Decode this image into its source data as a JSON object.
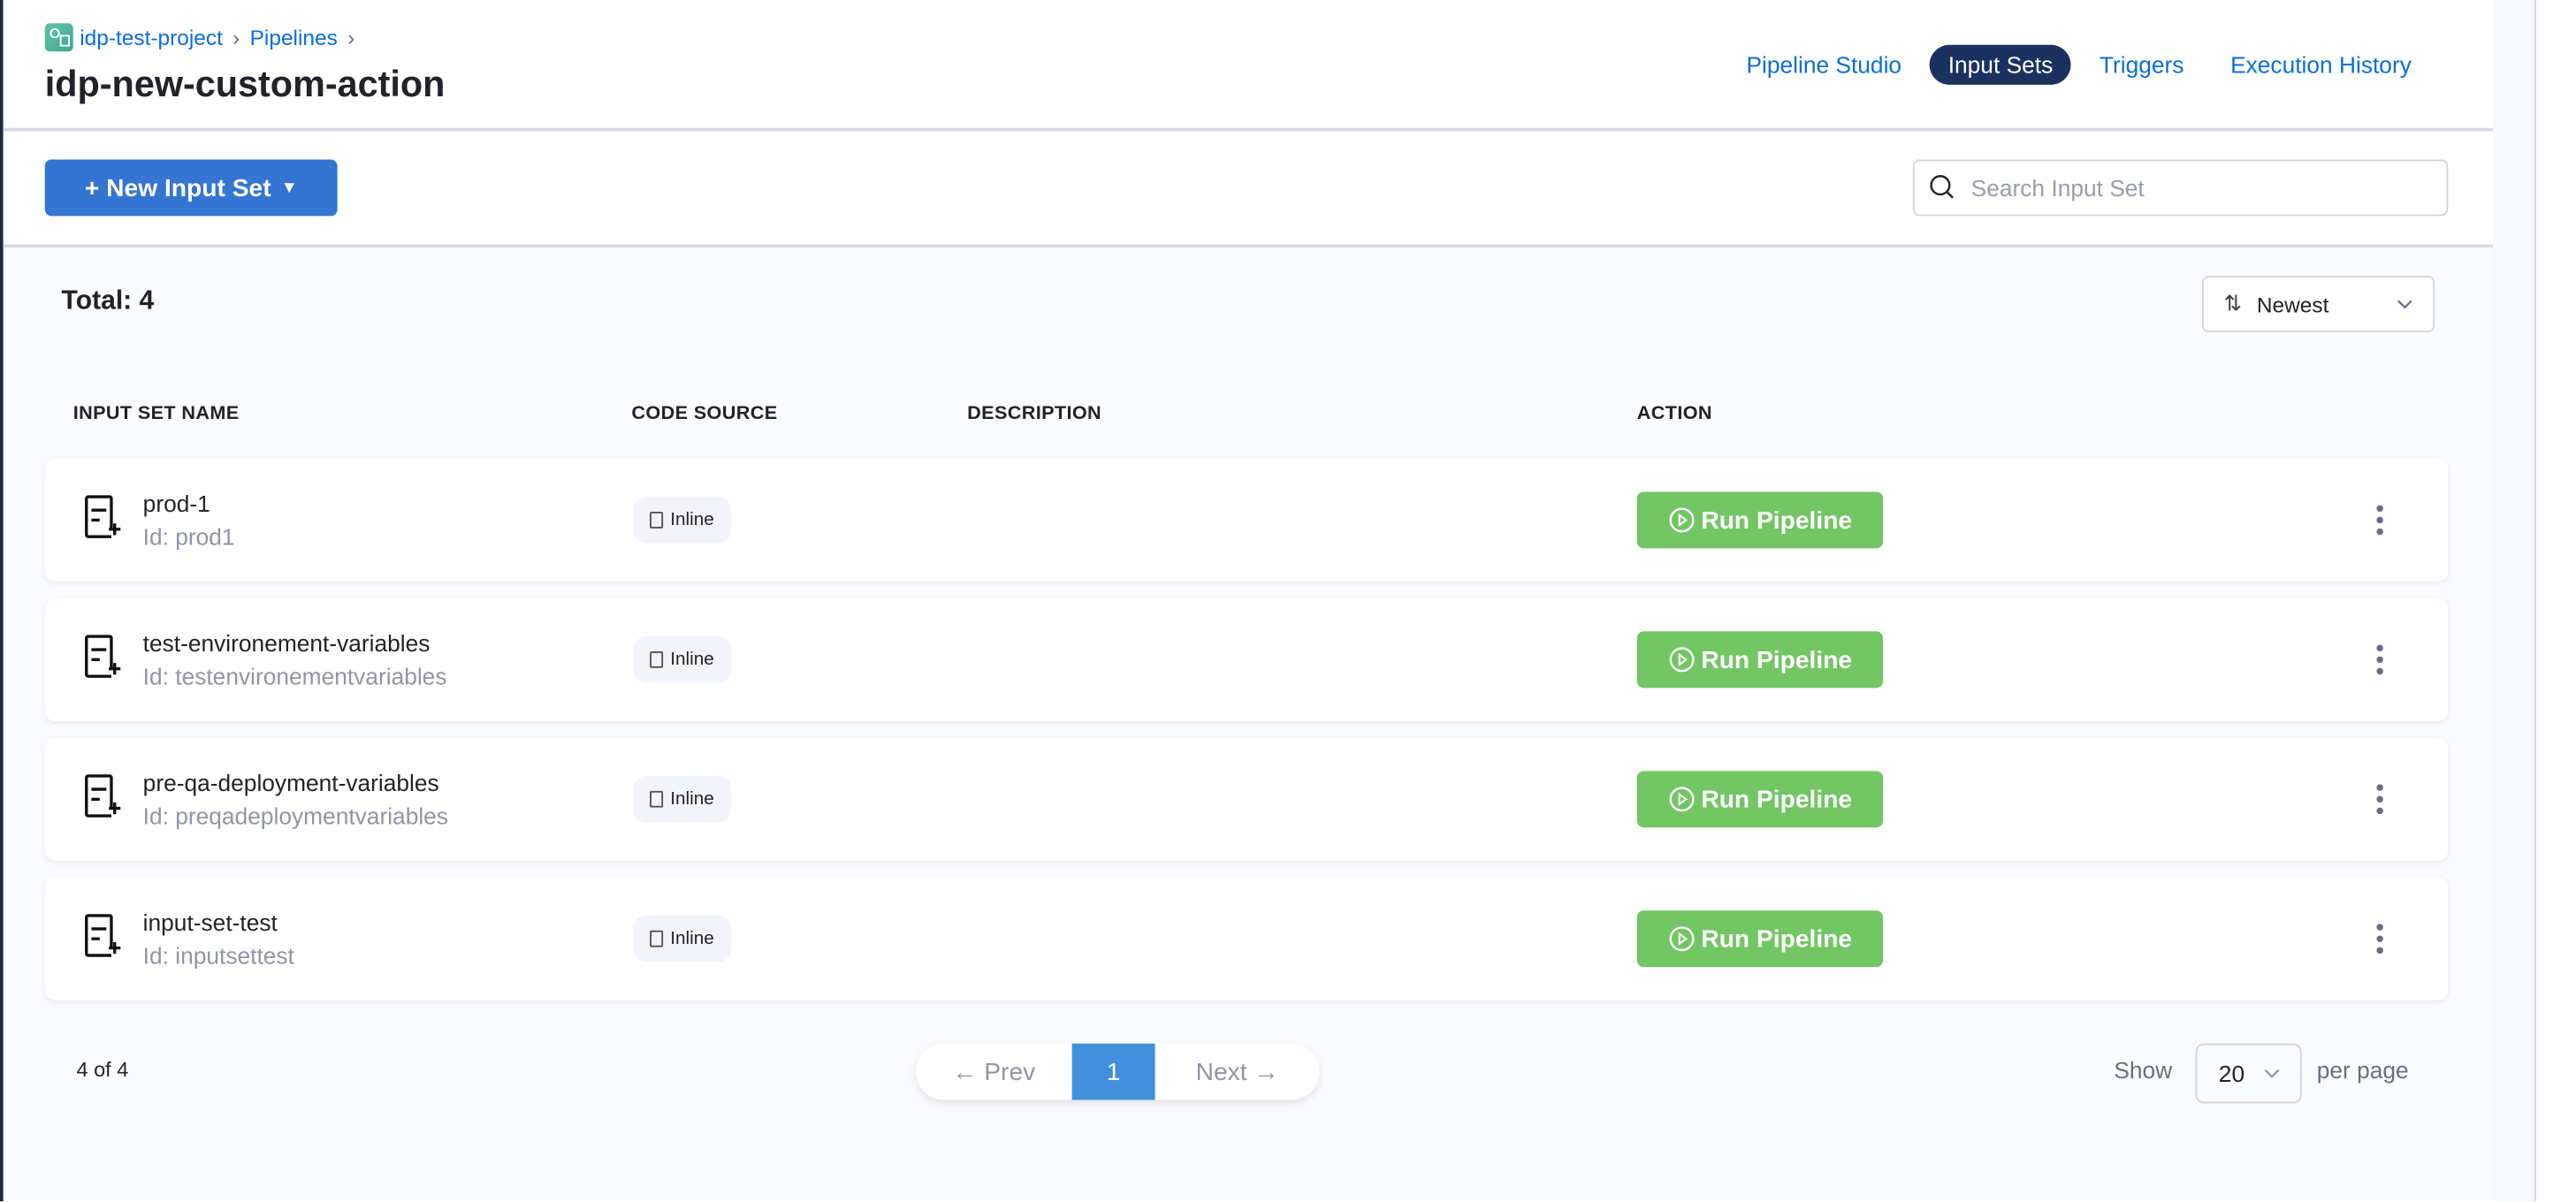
{
  "breadcrumb": {
    "project": "idp-test-project",
    "section": "Pipelines",
    "separator": "›"
  },
  "page_title": "idp-new-custom-action",
  "tabs": [
    {
      "label": "Pipeline Studio",
      "active": false
    },
    {
      "label": "Input Sets",
      "active": true
    },
    {
      "label": "Triggers",
      "active": false
    },
    {
      "label": "Execution History",
      "active": false
    }
  ],
  "toolbar": {
    "new_label": "+ New Input Set",
    "search_placeholder": "Search Input Set",
    "search_value": ""
  },
  "total_label": "Total: 4",
  "sort": {
    "value": "Newest"
  },
  "columns": [
    "INPUT SET NAME",
    "CODE SOURCE",
    "DESCRIPTION",
    "ACTION"
  ],
  "rows": [
    {
      "name": "prod-1",
      "id": "Id: prod1",
      "source": "Inline",
      "description": "",
      "action": "Run Pipeline"
    },
    {
      "name": "test-environement-variables",
      "id": "Id: testenvironementvariables",
      "source": "Inline",
      "description": "",
      "action": "Run Pipeline"
    },
    {
      "name": "pre-qa-deployment-variables",
      "id": "Id: preqadeploymentvariables",
      "source": "Inline",
      "description": "",
      "action": "Run Pipeline"
    },
    {
      "name": "input-set-test",
      "id": "Id: inputsettest",
      "source": "Inline",
      "description": "",
      "action": "Run Pipeline"
    }
  ],
  "pagination": {
    "count": "4 of 4",
    "prev": "← Prev",
    "current": "1",
    "next": "Next →",
    "show": "Show",
    "page_size": "20",
    "per_page": "per page"
  },
  "colors": {
    "accent": "#0a6eda",
    "active_tab": "#1b3260",
    "new_button": "#3375d0",
    "run_button": "#72c663",
    "page_current": "#4290dd"
  }
}
